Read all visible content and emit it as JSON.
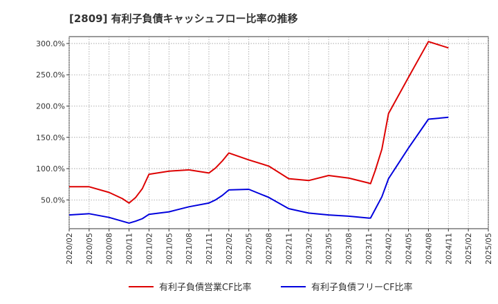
{
  "chart_data": {
    "type": "line",
    "title": "[2809]  有利子負債キャッシュフロー比率の推移",
    "xlabel": "",
    "ylabel": "",
    "ylim": [
      4,
      311
    ],
    "y_ticks": [
      50,
      100,
      150,
      200,
      250,
      300
    ],
    "y_tick_labels": [
      "50.0%",
      "100.0%",
      "150.0%",
      "200.0%",
      "250.0%",
      "300.0%"
    ],
    "x_tick_labels": [
      "2020/02",
      "2020/05",
      "2020/08",
      "2020/11",
      "2021/02",
      "2021/05",
      "2021/08",
      "2021/11",
      "2022/02",
      "2022/05",
      "2022/08",
      "2022/11",
      "2023/02",
      "2023/05",
      "2023/08",
      "2023/11",
      "2024/02",
      "2024/05",
      "2024/08",
      "2024/11",
      "2025/02",
      "2025/05"
    ],
    "grid": true,
    "legend_position": "bottom",
    "series": [
      {
        "name": "有利子負債営業CF比率",
        "color": "#dd0000",
        "points": [
          [
            0,
            71
          ],
          [
            3,
            71
          ],
          [
            6,
            62
          ],
          [
            8,
            52
          ],
          [
            9,
            45
          ],
          [
            10,
            54
          ],
          [
            11,
            68
          ],
          [
            12,
            91
          ],
          [
            15,
            96
          ],
          [
            18,
            98
          ],
          [
            21,
            93
          ],
          [
            22,
            101
          ],
          [
            23,
            112
          ],
          [
            24,
            125
          ],
          [
            27,
            114
          ],
          [
            30,
            104
          ],
          [
            33,
            84
          ],
          [
            36,
            81
          ],
          [
            39,
            89
          ],
          [
            42,
            85
          ],
          [
            45,
            77
          ],
          [
            45.3,
            76
          ],
          [
            46,
            97
          ],
          [
            47,
            131
          ],
          [
            48,
            188
          ],
          [
            51,
            246
          ],
          [
            54,
            303
          ],
          [
            57,
            293
          ]
        ]
      },
      {
        "name": "有利子負債フリーCF比率",
        "color": "#0000dd",
        "points": [
          [
            0,
            26
          ],
          [
            3,
            28
          ],
          [
            6,
            22
          ],
          [
            9,
            13
          ],
          [
            10,
            16
          ],
          [
            11,
            20
          ],
          [
            12,
            27
          ],
          [
            15,
            31
          ],
          [
            18,
            39
          ],
          [
            21,
            45
          ],
          [
            22,
            50
          ],
          [
            23,
            57
          ],
          [
            24,
            66
          ],
          [
            27,
            67
          ],
          [
            30,
            54
          ],
          [
            33,
            36
          ],
          [
            36,
            29
          ],
          [
            39,
            26
          ],
          [
            42,
            24
          ],
          [
            45,
            21
          ],
          [
            45.3,
            21
          ],
          [
            46,
            35
          ],
          [
            47,
            55
          ],
          [
            48,
            84
          ],
          [
            51,
            133
          ],
          [
            54,
            179
          ],
          [
            57,
            182
          ]
        ]
      }
    ]
  }
}
